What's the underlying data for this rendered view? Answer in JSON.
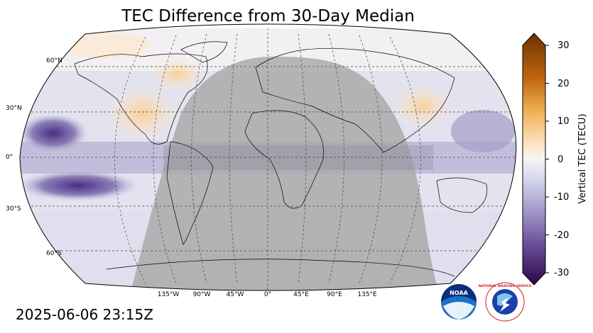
{
  "title": "TEC Difference from 30-Day Median",
  "timestamp": "2025-06-06 23:15Z",
  "map": {
    "projection": "Robinson",
    "lat_labels": [
      "60°N",
      "30°N",
      "0°",
      "30°S",
      "60°S"
    ],
    "lon_labels": [
      "135°W",
      "90°W",
      "45°W",
      "0°",
      "45°E",
      "90°E",
      "135°E"
    ],
    "night_shading_color": "#a8a8a8"
  },
  "colorbar": {
    "label": "Vertical TEC (TECU)",
    "ticks": [
      "30",
      "20",
      "10",
      "0",
      "-10",
      "-20",
      "-30"
    ],
    "min": -30,
    "max": 30,
    "colors": {
      "high": "#7a3a06",
      "mid_high": "#e88a1e",
      "zero": "#f4f4f4",
      "mid_low": "#9d91c2",
      "low": "#2d0a4e"
    }
  },
  "logos": {
    "noaa_text": "NOAA",
    "nws_text": "NATIONAL WEATHER SERVICE"
  }
}
